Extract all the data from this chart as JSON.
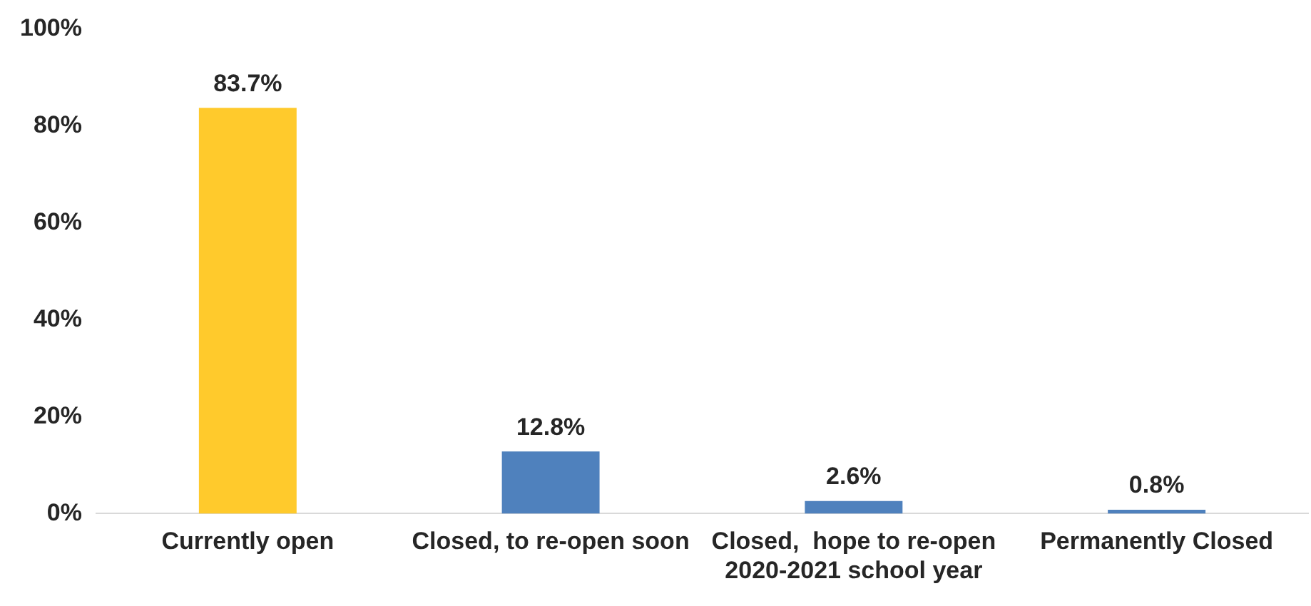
{
  "chart_data": {
    "type": "bar",
    "categories": [
      "Currently open",
      "Closed, to re-open soon",
      "Closed,  hope to re-open 2020-2021 school year",
      "Permanently Closed"
    ],
    "values": [
      83.7,
      12.8,
      2.6,
      0.8
    ],
    "colors": [
      "#ffca2c",
      "#4f81bd",
      "#4f81bd",
      "#4f81bd"
    ],
    "value_labels": [
      "83.7%",
      "12.8%",
      "2.6%",
      "0.8%"
    ],
    "ylim": [
      0,
      100
    ],
    "yticks": [
      {
        "value": 0,
        "label": "0%"
      },
      {
        "value": 20,
        "label": "20%"
      },
      {
        "value": 40,
        "label": "40%"
      },
      {
        "value": 60,
        "label": "60%"
      },
      {
        "value": 80,
        "label": "80%"
      },
      {
        "value": 100,
        "label": "100%"
      }
    ],
    "grid": false,
    "legend": false
  }
}
